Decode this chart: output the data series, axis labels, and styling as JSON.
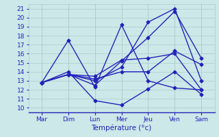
{
  "days": [
    0,
    1,
    2,
    3,
    4,
    5,
    6
  ],
  "day_labels": [
    "Mar",
    "Dim",
    "Lun",
    "Mer",
    "Jeu",
    "Ven",
    "Sam"
  ],
  "series": [
    [
      12.8,
      13.7,
      13.0,
      14.5,
      19.5,
      21.0,
      13.0
    ],
    [
      12.8,
      13.7,
      12.5,
      15.2,
      17.8,
      20.7,
      15.5
    ],
    [
      12.8,
      13.7,
      13.2,
      14.0,
      14.0,
      16.3,
      14.8
    ],
    [
      12.8,
      13.7,
      13.5,
      15.3,
      15.5,
      16.0,
      12.0
    ],
    [
      12.8,
      14.0,
      10.8,
      10.3,
      12.1,
      14.0,
      11.5
    ],
    [
      12.8,
      17.5,
      12.3,
      19.2,
      13.0,
      12.2,
      12.0
    ]
  ],
  "line_color": "#2222bb",
  "marker": "D",
  "markersize": 2.5,
  "linewidth": 1.0,
  "ylim": [
    9.5,
    21.5
  ],
  "yticks": [
    10,
    11,
    12,
    13,
    14,
    15,
    16,
    17,
    18,
    19,
    20,
    21
  ],
  "xlabel": "Température (°c)",
  "background_color": "#cce8e8",
  "grid_color": "#aacccc",
  "axis_color": "#2222bb",
  "tick_color": "#2222bb",
  "xlabel_color": "#2222bb",
  "tick_fontsize": 6.5,
  "xlabel_fontsize": 7.5
}
